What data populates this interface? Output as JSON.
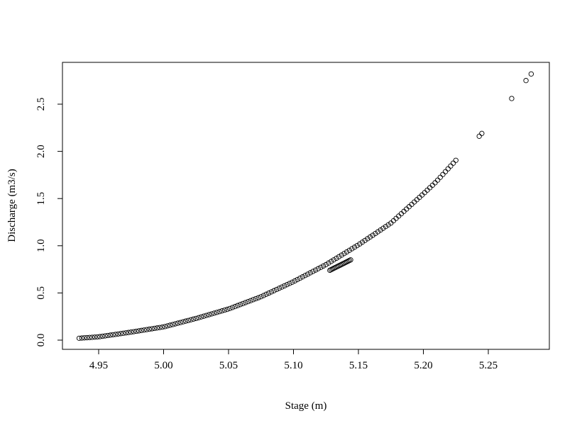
{
  "chart_data": {
    "type": "scatter",
    "title": "",
    "xlabel": "Stage (m)",
    "ylabel": "Discharge (m3/s)",
    "xlim": [
      4.935,
      5.283
    ],
    "ylim": [
      -0.08,
      2.9
    ],
    "x_ticks": [
      4.95,
      5.0,
      5.05,
      5.1,
      5.15,
      5.2,
      5.25
    ],
    "x_tick_labels": [
      "4.95",
      "5.00",
      "5.05",
      "5.10",
      "5.15",
      "5.20",
      "5.25"
    ],
    "y_ticks": [
      0.0,
      0.5,
      1.0,
      1.5,
      2.0,
      2.5
    ],
    "y_tick_labels": [
      "0.0",
      "0.5",
      "1.0",
      "1.5",
      "2.0",
      "2.5"
    ],
    "grid": false,
    "legend": "none",
    "marker": "open-circle",
    "series": [
      {
        "curve": {
          "x_start": 4.935,
          "x_end": 5.226,
          "x_step": 0.002,
          "points": [
            [
              4.935,
              0.02
            ],
            [
              4.95,
              0.035
            ],
            [
              4.96,
              0.055
            ],
            [
              4.975,
              0.085
            ],
            [
              5.0,
              0.14
            ],
            [
              5.025,
              0.23
            ],
            [
              5.05,
              0.33
            ],
            [
              5.075,
              0.46
            ],
            [
              5.1,
              0.62
            ],
            [
              5.125,
              0.8
            ],
            [
              5.15,
              1.01
            ],
            [
              5.175,
              1.24
            ],
            [
              5.2,
              1.55
            ],
            [
              5.21,
              1.68
            ],
            [
              5.226,
              1.92
            ]
          ]
        },
        "offset_cluster": {
          "x_start": 5.128,
          "x_end": 5.144,
          "x_step": 0.001,
          "y_start": 0.74,
          "y_end": 0.85
        },
        "isolated_points": [
          {
            "x": 5.243,
            "y": 2.16
          },
          {
            "x": 5.245,
            "y": 2.19
          },
          {
            "x": 5.268,
            "y": 2.56
          },
          {
            "x": 5.279,
            "y": 2.75
          },
          {
            "x": 5.283,
            "y": 2.82
          }
        ]
      }
    ]
  }
}
